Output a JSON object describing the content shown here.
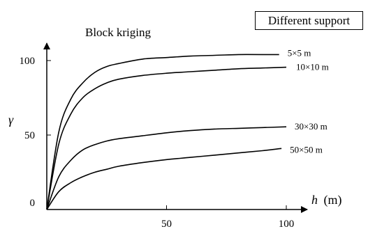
{
  "chart_data": {
    "type": "line",
    "title": "Block kriging",
    "annotation": "Different support",
    "xlabel_var": "h",
    "xlabel_unit": "(m)",
    "ylabel": "γ",
    "x_ticks": [
      0,
      50,
      100
    ],
    "y_ticks": [
      0,
      50,
      100
    ],
    "xlim": [
      0,
      100
    ],
    "ylim": [
      0,
      100
    ],
    "grid": false,
    "legend": "labels at line ends",
    "series": [
      {
        "name": "5×5 m",
        "x": [
          0,
          5,
          10,
          15,
          20,
          25,
          30,
          40,
          50,
          60,
          70,
          80,
          90,
          97
        ],
        "y": [
          0,
          52,
          74,
          85,
          92,
          96,
          98,
          101,
          102,
          103,
          103.5,
          104,
          104,
          104
        ]
      },
      {
        "name": "10×10 m",
        "x": [
          0,
          5,
          10,
          15,
          20,
          25,
          30,
          40,
          50,
          60,
          70,
          80,
          90,
          100
        ],
        "y": [
          0,
          44,
          64,
          75,
          81,
          85,
          87.5,
          90,
          91.5,
          92.5,
          93.5,
          94.5,
          95,
          95.5
        ]
      },
      {
        "name": "30×30 m",
        "x": [
          0,
          5,
          10,
          15,
          20,
          25,
          30,
          40,
          50,
          60,
          70,
          80,
          90,
          100
        ],
        "y": [
          0,
          22,
          33,
          40,
          43.5,
          46,
          47.5,
          49.5,
          51.5,
          53,
          54,
          54.5,
          55,
          55.5
        ]
      },
      {
        "name": "50×50 m",
        "x": [
          0,
          5,
          10,
          15,
          20,
          25,
          30,
          40,
          50,
          60,
          70,
          80,
          90,
          98
        ],
        "y": [
          0,
          12,
          18,
          22,
          25,
          27,
          29,
          31.5,
          33.5,
          35,
          36.5,
          38,
          39.5,
          41
        ]
      }
    ]
  }
}
